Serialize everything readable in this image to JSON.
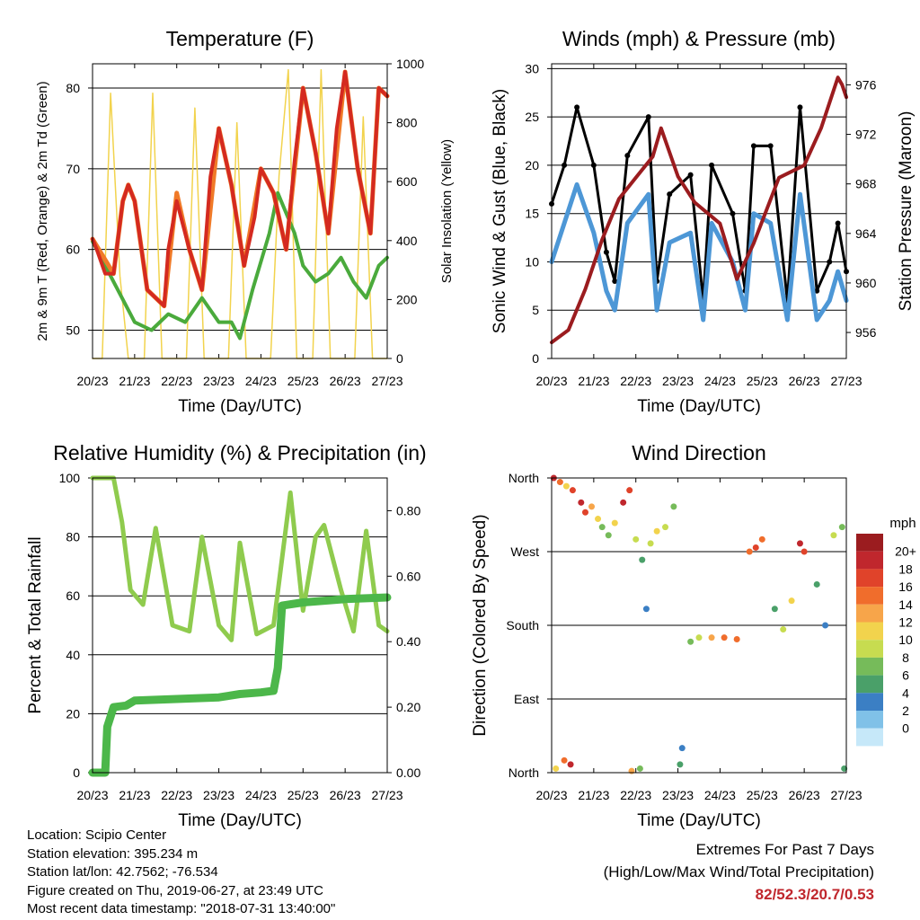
{
  "chart_data": [
    {
      "type": "line",
      "title": "Temperature (F)",
      "xlabel": "Time (Day/UTC)",
      "ylabel": "2m & 9m T (Red, Orange) & 2m Td (Green)",
      "y2label": "Solar Insolation (Yellow)",
      "x_ticks": [
        "20/23",
        "21/23",
        "22/23",
        "23/23",
        "24/23",
        "25/23",
        "26/23",
        "27/23"
      ],
      "y_ticks": [
        50,
        60,
        70,
        80
      ],
      "y2_ticks": [
        0,
        200,
        400,
        600,
        800,
        1000
      ],
      "ylim": [
        46.5,
        83
      ],
      "y2lim": [
        0,
        1000
      ],
      "grid": "horizontal",
      "colors": {
        "t2m": "#d42a20",
        "t9m": "#f07a28",
        "td": "#4aaa3c",
        "solar": "#f2d34d"
      },
      "series": [
        {
          "key": "t2m",
          "x": [
            0,
            0.1,
            0.3,
            0.5,
            0.72,
            0.85,
            1.0,
            1.3,
            1.7,
            1.8,
            2.0,
            2.3,
            2.6,
            2.8,
            3.0,
            3.3,
            3.6,
            3.85,
            4.0,
            4.3,
            4.6,
            4.8,
            5.0,
            5.3,
            5.6,
            5.8,
            6.0,
            6.3,
            6.6,
            6.8,
            7.0
          ],
          "y": [
            61.3,
            60,
            57,
            57,
            66,
            68,
            66,
            55,
            53,
            60,
            66,
            60,
            55,
            69,
            75,
            68,
            58,
            64,
            70,
            67,
            60,
            71,
            80,
            72,
            62,
            75,
            82,
            70,
            62,
            80,
            79
          ]
        },
        {
          "key": "t9m",
          "x": [
            0,
            0.5,
            0.72,
            0.85,
            1.0,
            1.3,
            1.7,
            2.0,
            2.3,
            2.6,
            3.0,
            3.3,
            3.6,
            4.0,
            4.3,
            4.6,
            5.0,
            5.3,
            5.6,
            6.0,
            6.3,
            6.6,
            6.8,
            7.0
          ],
          "y": [
            61.3,
            57,
            66,
            68,
            66,
            55,
            53,
            67,
            60,
            55,
            75,
            68,
            58,
            70,
            67,
            60,
            80,
            72,
            62,
            82,
            70,
            62,
            80,
            79
          ]
        },
        {
          "key": "td",
          "x": [
            0,
            0.3,
            0.6,
            1.0,
            1.4,
            1.8,
            2.2,
            2.6,
            3.0,
            3.3,
            3.5,
            3.8,
            4.2,
            4.4,
            4.8,
            5.0,
            5.3,
            5.6,
            5.9,
            6.2,
            6.5,
            6.8,
            7.0
          ],
          "y": [
            61,
            58,
            55,
            51,
            50,
            52,
            51,
            54,
            51,
            51,
            49,
            55,
            62,
            67,
            62,
            58,
            56,
            57,
            59,
            56,
            54,
            58,
            59
          ]
        },
        {
          "key": "solar",
          "x": [
            0,
            0.23,
            0.43,
            0.65,
            0.85,
            1.05,
            1.23,
            1.43,
            1.65,
            1.85,
            2.05,
            2.23,
            2.43,
            2.65,
            2.85,
            3.05,
            3.23,
            3.43,
            3.65,
            3.85,
            4.05,
            4.23,
            4.43,
            4.65,
            4.85,
            5.05,
            5.23,
            5.43,
            5.65,
            5.85,
            6.05,
            6.23,
            6.43,
            6.65,
            6.85,
            7.0
          ],
          "y": [
            0,
            0,
            900,
            280,
            0,
            0,
            0,
            900,
            0,
            0,
            0,
            0,
            850,
            0,
            0,
            0,
            0,
            800,
            0,
            0,
            0,
            0,
            620,
            980,
            0,
            0,
            0,
            980,
            0,
            0,
            0,
            0,
            820,
            0,
            0,
            0
          ]
        }
      ]
    },
    {
      "type": "line",
      "title": "Winds (mph) & Pressure (mb)",
      "xlabel": "Time (Day/UTC)",
      "ylabel": "Sonic Wind & Gust (Blue, Black)",
      "y2label": "Station Pressure (Maroon)",
      "x_ticks": [
        "20/23",
        "21/23",
        "22/23",
        "23/23",
        "24/23",
        "25/23",
        "26/23",
        "27/23"
      ],
      "y_ticks": [
        0,
        5,
        10,
        15,
        20,
        25,
        30
      ],
      "y2_ticks": [
        956,
        960,
        964,
        968,
        972,
        976
      ],
      "ylim": [
        0,
        30.5
      ],
      "y2lim": [
        953.9,
        977.7
      ],
      "grid": "horizontal",
      "colors": {
        "wind": "#4d97d6",
        "gust": "#000000",
        "pressure": "#9b1c1f"
      },
      "series": [
        {
          "key": "wind",
          "x": [
            0,
            0.3,
            0.6,
            1.0,
            1.3,
            1.5,
            1.8,
            2.3,
            2.5,
            2.8,
            3.3,
            3.6,
            3.8,
            4.3,
            4.6,
            4.8,
            5.2,
            5.6,
            5.9,
            6.3,
            6.6,
            6.8,
            7.0
          ],
          "y": [
            10,
            14,
            18,
            13,
            7,
            5,
            14,
            17,
            5,
            12,
            13,
            4,
            14,
            10,
            5,
            15,
            14,
            4,
            17,
            4,
            6,
            9,
            6
          ]
        },
        {
          "key": "gust",
          "x": [
            0,
            0.3,
            0.6,
            1.0,
            1.3,
            1.5,
            1.8,
            2.3,
            2.5,
            2.8,
            3.3,
            3.6,
            3.8,
            4.3,
            4.6,
            4.8,
            5.2,
            5.6,
            5.9,
            6.3,
            6.6,
            6.8,
            7.0
          ],
          "y": [
            16,
            20,
            26,
            20,
            11,
            8,
            21,
            25,
            8,
            17,
            19,
            6,
            20,
            15,
            7,
            22,
            22,
            6,
            26,
            7,
            10,
            14,
            9
          ]
        },
        {
          "key": "pressure",
          "x": [
            0,
            0.4,
            0.8,
            1.2,
            1.6,
            2.0,
            2.4,
            2.6,
            3.0,
            3.4,
            4.0,
            4.4,
            4.8,
            5.4,
            6.0,
            6.4,
            6.8,
            6.9,
            7.0
          ],
          "y": [
            955.2,
            956.2,
            959.5,
            963.5,
            966.8,
            968.5,
            970.2,
            972.5,
            968.6,
            966.5,
            964.8,
            960.3,
            963.2,
            968.5,
            969.5,
            972.5,
            976.6,
            976.0,
            975.0
          ]
        }
      ]
    },
    {
      "type": "line",
      "title": "Relative Humidity (%) & Precipitation (in)",
      "xlabel": "Time (Day/UTC)",
      "ylabel": "Percent & Total Rainfall",
      "x_ticks": [
        "20/23",
        "21/23",
        "22/23",
        "23/23",
        "24/23",
        "25/23",
        "26/23",
        "27/23"
      ],
      "y_ticks": [
        0,
        20,
        40,
        60,
        80,
        100
      ],
      "y2_ticks": [
        "0.00",
        "0.20",
        "0.40",
        "0.60",
        "0.80"
      ],
      "ylim": [
        0,
        100
      ],
      "y2lim": [
        0,
        0.9
      ],
      "grid": "horizontal",
      "colors": {
        "rh": "#8fcb4e",
        "precip": "#4cb74a"
      },
      "series": [
        {
          "key": "rh",
          "x": [
            0,
            0.5,
            0.7,
            0.9,
            1.2,
            1.5,
            1.9,
            2.3,
            2.6,
            3.0,
            3.3,
            3.5,
            3.9,
            4.3,
            4.7,
            5.0,
            5.3,
            5.5,
            5.9,
            6.2,
            6.5,
            6.8,
            7.0
          ],
          "y": [
            100,
            100,
            85,
            62,
            57,
            83,
            50,
            48,
            80,
            50,
            45,
            78,
            47,
            50,
            95,
            55,
            80,
            84,
            62,
            48,
            82,
            50,
            48
          ]
        },
        {
          "key": "precip",
          "x": [
            0,
            0.3,
            0.35,
            0.5,
            0.8,
            1.0,
            2.0,
            3.0,
            3.5,
            4.0,
            4.3,
            4.4,
            4.45,
            4.5,
            5.0,
            6.0,
            7.0
          ],
          "y": [
            0,
            0,
            0.14,
            0.2,
            0.205,
            0.22,
            0.225,
            0.23,
            0.24,
            0.245,
            0.25,
            0.32,
            0.41,
            0.51,
            0.52,
            0.53,
            0.535
          ]
        }
      ]
    },
    {
      "type": "scatter",
      "title": "Wind Direction",
      "xlabel": "Time (Day/UTC)",
      "ylabel": "Direction (Colored By Speed)",
      "x_ticks": [
        "20/23",
        "21/23",
        "22/23",
        "23/23",
        "24/23",
        "25/23",
        "26/23",
        "27/23"
      ],
      "y_ticks": [
        "North",
        "West",
        "South",
        "East",
        "North"
      ],
      "y_tick_values": [
        360,
        270,
        180,
        90,
        0
      ],
      "ylim": [
        0,
        360
      ],
      "legend_title": "mph",
      "legend_labels": [
        "20+",
        "18",
        "16",
        "14",
        "12",
        "10",
        "8",
        "6",
        "4",
        "2",
        "0"
      ],
      "legend_colors": [
        "#9b1c1f",
        "#c0272d",
        "#e0432a",
        "#f06d2c",
        "#f7a54a",
        "#f2d34d",
        "#c7dc50",
        "#76bb5a",
        "#4aa069",
        "#3b7fc4",
        "#80c1e8",
        "#c6e8f9"
      ],
      "points": [
        {
          "x": 0.05,
          "y": 360,
          "s": 18
        },
        {
          "x": 0.2,
          "y": 355,
          "s": 14
        },
        {
          "x": 0.35,
          "y": 350,
          "s": 10
        },
        {
          "x": 0.5,
          "y": 345,
          "s": 16
        },
        {
          "x": 0.7,
          "y": 330,
          "s": 18
        },
        {
          "x": 0.8,
          "y": 318,
          "s": 17
        },
        {
          "x": 0.95,
          "y": 325,
          "s": 13
        },
        {
          "x": 1.1,
          "y": 310,
          "s": 10
        },
        {
          "x": 1.2,
          "y": 300,
          "s": 6
        },
        {
          "x": 1.35,
          "y": 290,
          "s": 6
        },
        {
          "x": 1.5,
          "y": 305,
          "s": 10
        },
        {
          "x": 1.7,
          "y": 330,
          "s": 18
        },
        {
          "x": 1.85,
          "y": 345,
          "s": 16
        },
        {
          "x": 2.0,
          "y": 285,
          "s": 8
        },
        {
          "x": 2.15,
          "y": 260,
          "s": 4
        },
        {
          "x": 2.25,
          "y": 200,
          "s": 2
        },
        {
          "x": 2.35,
          "y": 280,
          "s": 8
        },
        {
          "x": 2.5,
          "y": 295,
          "s": 10
        },
        {
          "x": 2.7,
          "y": 300,
          "s": 8
        },
        {
          "x": 2.9,
          "y": 325,
          "s": 6
        },
        {
          "x": 3.1,
          "y": 30,
          "s": 2
        },
        {
          "x": 3.3,
          "y": 160,
          "s": 6
        },
        {
          "x": 3.5,
          "y": 165,
          "s": 8
        },
        {
          "x": 3.8,
          "y": 165,
          "s": 13
        },
        {
          "x": 4.1,
          "y": 165,
          "s": 14
        },
        {
          "x": 4.4,
          "y": 163,
          "s": 14
        },
        {
          "x": 4.7,
          "y": 270,
          "s": 14
        },
        {
          "x": 4.85,
          "y": 275,
          "s": 17
        },
        {
          "x": 5.0,
          "y": 285,
          "s": 15
        },
        {
          "x": 5.3,
          "y": 200,
          "s": 4
        },
        {
          "x": 5.5,
          "y": 175,
          "s": 8
        },
        {
          "x": 5.7,
          "y": 210,
          "s": 10
        },
        {
          "x": 5.9,
          "y": 280,
          "s": 18
        },
        {
          "x": 6.0,
          "y": 270,
          "s": 16
        },
        {
          "x": 6.3,
          "y": 230,
          "s": 4
        },
        {
          "x": 6.5,
          "y": 180,
          "s": 2
        },
        {
          "x": 6.7,
          "y": 290,
          "s": 8
        },
        {
          "x": 6.9,
          "y": 300,
          "s": 6
        },
        {
          "x": 0.1,
          "y": 5,
          "s": 10
        },
        {
          "x": 0.3,
          "y": 15,
          "s": 14
        },
        {
          "x": 0.45,
          "y": 10,
          "s": 18
        },
        {
          "x": 2.1,
          "y": 5,
          "s": 6
        },
        {
          "x": 1.9,
          "y": 2,
          "s": 12
        },
        {
          "x": 3.05,
          "y": 10,
          "s": 4
        },
        {
          "x": 6.95,
          "y": 5,
          "s": 4
        }
      ]
    }
  ],
  "info": {
    "location": "Location: Scipio Center",
    "elevation": "Station elevation: 395.234 m",
    "latlon": "Station lat/lon: 42.7562; -76.534",
    "created": "Figure created on Thu, 2019-06-27, at 23:49 UTC",
    "timestamp": "Most recent data timestamp: \"2018-07-31 13:40:00\""
  },
  "extremes": {
    "title": "Extremes For Past 7 Days",
    "subtitle": "(High/Low/Max Wind/Total Precipitation)",
    "values": "82/52.3/20.7/0.53"
  }
}
